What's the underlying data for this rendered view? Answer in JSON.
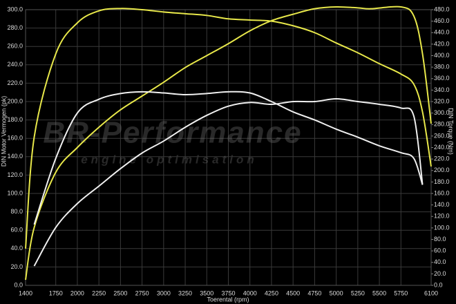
{
  "chart_data": {
    "type": "line",
    "x_label": "Toerental (rpm)",
    "y_label": "DIN Motor Vermogen (pk)",
    "y2_label": "DIN Torque (Nm)",
    "watermark": "BR-Performance",
    "watermark_subtitle": "engine optimisation",
    "xlim": [
      1400,
      6100
    ],
    "xticks": [
      1400,
      1750,
      2000,
      2250,
      2500,
      2750,
      3000,
      3250,
      3500,
      3750,
      4000,
      4250,
      4500,
      4750,
      5000,
      5250,
      5500,
      5750,
      6100
    ],
    "ylim": [
      0,
      300
    ],
    "yticks": [
      {
        "value": 0,
        "label": "0.0"
      },
      {
        "value": 20,
        "label": "20.0"
      },
      {
        "value": 40,
        "label": "40.0"
      },
      {
        "value": 60,
        "label": "60.0"
      },
      {
        "value": 80,
        "label": "80.0"
      },
      {
        "value": 100,
        "label": "100.0"
      },
      {
        "value": 120,
        "label": "120.0"
      },
      {
        "value": 140,
        "label": "140.0"
      },
      {
        "value": 160,
        "label": "160.0"
      },
      {
        "value": 180,
        "label": "180.0"
      },
      {
        "value": 200,
        "label": "200.0"
      },
      {
        "value": 220,
        "label": "220.0"
      },
      {
        "value": 240,
        "label": "240.0"
      },
      {
        "value": 260,
        "label": "260.0"
      },
      {
        "value": 280,
        "label": "280.0"
      },
      {
        "value": 300,
        "label": "300.0"
      }
    ],
    "y2lim": [
      0,
      480
    ],
    "y2ticks": [
      {
        "value": 0,
        "label": "0.0"
      },
      {
        "value": 20,
        "label": "20.0"
      },
      {
        "value": 40,
        "label": "40.0"
      },
      {
        "value": 60,
        "label": "60.0"
      },
      {
        "value": 80,
        "label": "80.0"
      },
      {
        "value": 100,
        "label": "100.0"
      },
      {
        "value": 120,
        "label": "120.0"
      },
      {
        "value": 140,
        "label": "140.0"
      },
      {
        "value": 160,
        "label": "160.0"
      },
      {
        "value": 180,
        "label": "180.0"
      },
      {
        "value": 200,
        "label": "200.0"
      },
      {
        "value": 220,
        "label": "220.0"
      },
      {
        "value": 240,
        "label": "240.0"
      },
      {
        "value": 260,
        "label": "260.0"
      },
      {
        "value": 280,
        "label": "280.0"
      },
      {
        "value": 300,
        "label": "300.0"
      },
      {
        "value": 320,
        "label": "320.0"
      },
      {
        "value": 340,
        "label": "340.0"
      },
      {
        "value": 360,
        "label": "360.0"
      },
      {
        "value": 380,
        "label": "380.0"
      },
      {
        "value": 400,
        "label": "400.0"
      },
      {
        "value": 420,
        "label": "420.0"
      },
      {
        "value": 440,
        "label": "440.0"
      },
      {
        "value": 460,
        "label": "460.0"
      },
      {
        "value": 480,
        "label": "480.0"
      }
    ],
    "grid": true,
    "series": [
      {
        "color": "#e8e84a",
        "x": [
          1400,
          1500,
          1750,
          2000,
          2250,
          2500,
          2750,
          3000,
          3250,
          3500,
          3750,
          4000,
          4250,
          4500,
          4750,
          5000,
          5250,
          5400,
          5750,
          5900,
          6000,
          6100
        ],
        "values": [
          6,
          63,
          123,
          150,
          172,
          191,
          206,
          221,
          237,
          250,
          263,
          277,
          288,
          295,
          301,
          303,
          302,
          301,
          303,
          293,
          252,
          176
        ]
      },
      {
        "color": "#e8e84a",
        "axis": "y2",
        "x": [
          1400,
          1500,
          1750,
          2000,
          2250,
          2500,
          2750,
          3000,
          3250,
          3500,
          3750,
          4000,
          4250,
          4500,
          4750,
          5000,
          5250,
          5500,
          5750,
          5900,
          6000,
          6100
        ],
        "values": [
          64,
          258,
          403,
          457,
          478,
          482,
          480,
          476,
          473,
          470,
          464,
          462,
          460,
          452,
          440,
          422,
          405,
          386,
          368,
          350,
          302,
          207
        ]
      },
      {
        "color": "#f0f0f0",
        "x": [
          1500,
          1750,
          2000,
          2250,
          2500,
          2750,
          3000,
          3250,
          3500,
          3750,
          4000,
          4250,
          4500,
          4750,
          5000,
          5250,
          5500,
          5750,
          5900,
          6000
        ],
        "values": [
          21,
          63,
          89,
          108,
          127,
          144,
          157,
          172,
          185,
          195,
          199,
          197,
          200,
          200,
          203,
          200,
          197,
          193,
          184,
          110
        ]
      },
      {
        "color": "#f0f0f0",
        "axis": "y2",
        "x": [
          1500,
          1750,
          2000,
          2250,
          2500,
          2750,
          3000,
          3250,
          3500,
          3750,
          4000,
          4250,
          4500,
          4750,
          5000,
          5250,
          5500,
          5750,
          5900,
          6000
        ],
        "values": [
          106,
          221,
          300,
          324,
          334,
          337,
          335,
          332,
          334,
          337,
          335,
          320,
          302,
          288,
          272,
          258,
          243,
          231,
          221,
          175
        ]
      }
    ]
  }
}
